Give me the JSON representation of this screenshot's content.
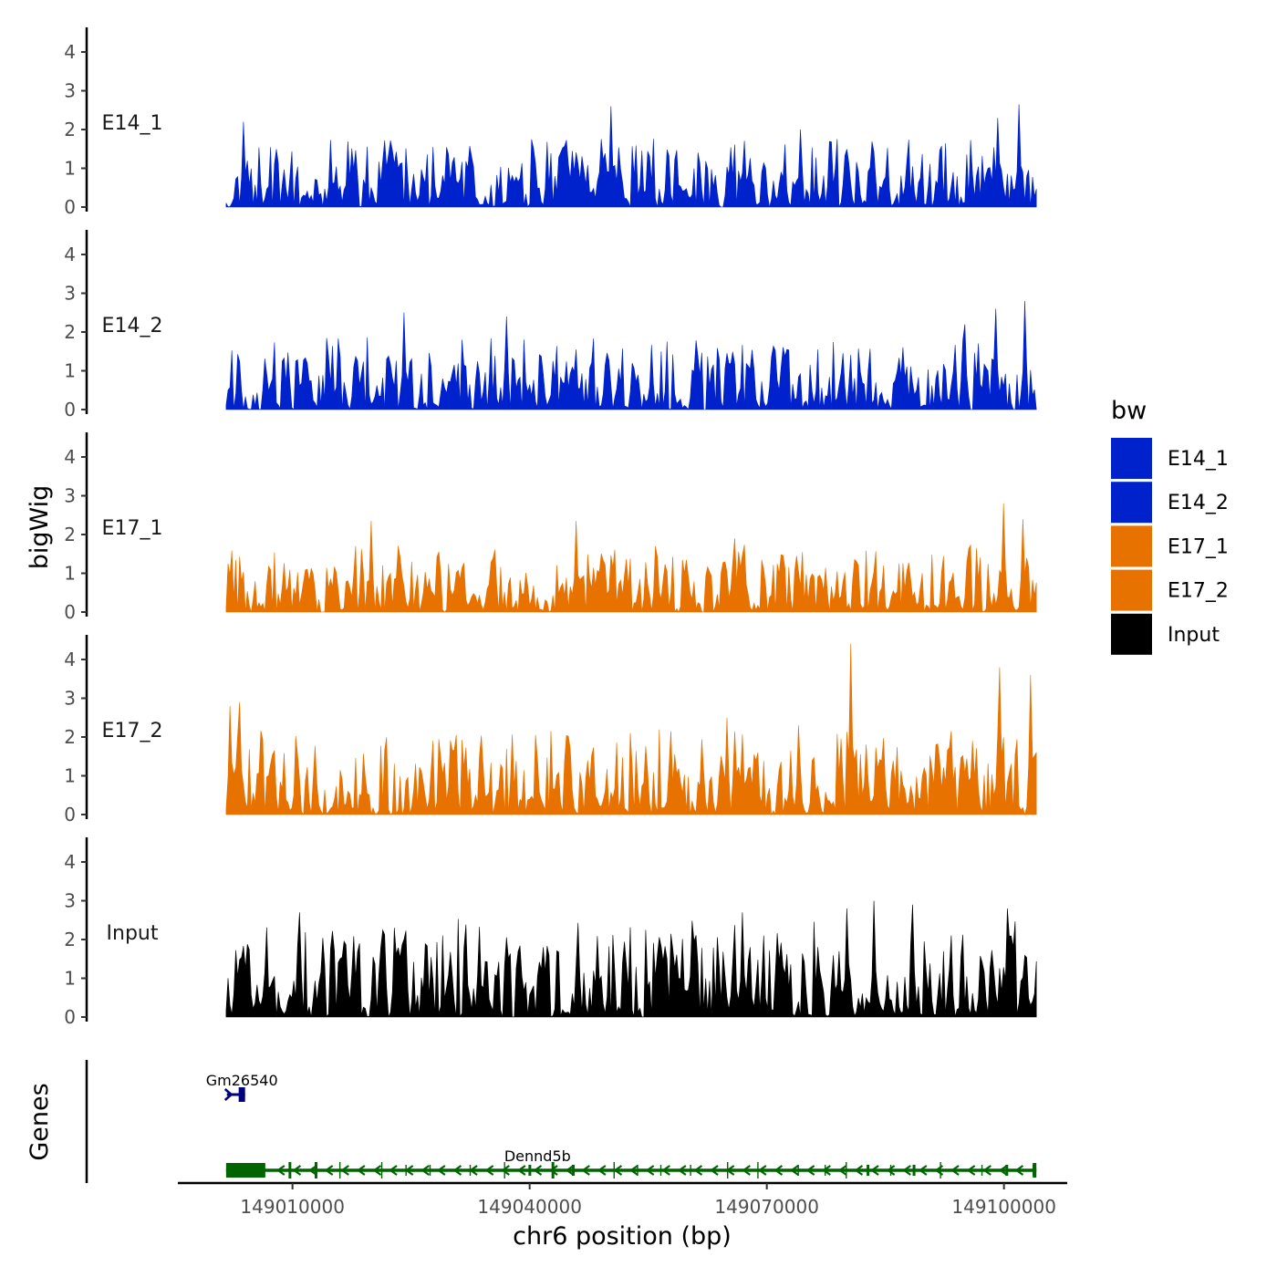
{
  "chart_data": {
    "type": "area",
    "title": "",
    "ylabel": "bigWig",
    "genes_label": "Genes",
    "xlabel": "chr6 position (bp)",
    "ylim": [
      0,
      4.5
    ],
    "y_ticks": [
      0,
      1,
      2,
      3,
      4
    ],
    "x_range": [
      148995500,
      149108000
    ],
    "x_data_range": [
      149001600,
      149104100
    ],
    "x_ticks": [
      149010000,
      149040000,
      149070000,
      149100000
    ],
    "x_tick_labels": [
      "149010000",
      "149040000",
      "149070000",
      "149100000"
    ],
    "legend": {
      "title": "bw",
      "position": "right",
      "entries": [
        {
          "name": "E14_1",
          "color": "#0022cc"
        },
        {
          "name": "E14_2",
          "color": "#0022cc"
        },
        {
          "name": "E17_1",
          "color": "#e87200"
        },
        {
          "name": "E17_2",
          "color": "#e87200"
        },
        {
          "name": "Input",
          "color": "#000000"
        }
      ]
    },
    "series": [
      {
        "name": "E14_1",
        "color": "#0022cc",
        "seed": 11,
        "base": 0.45,
        "typical_max": 1.6,
        "max": 2.7,
        "peaks": [
          [
            149003700,
            2.2
          ],
          [
            149050200,
            2.6
          ],
          [
            149074300,
            2.0
          ],
          [
            149101800,
            2.65
          ],
          [
            149099200,
            2.3
          ]
        ]
      },
      {
        "name": "E14_2",
        "color": "#0022cc",
        "seed": 23,
        "base": 0.55,
        "typical_max": 1.7,
        "max": 2.8,
        "peaks": [
          [
            149024100,
            2.5
          ],
          [
            149037000,
            2.4
          ],
          [
            149099000,
            2.6
          ],
          [
            149102600,
            2.8
          ],
          [
            149095100,
            2.2
          ]
        ]
      },
      {
        "name": "E17_1",
        "color": "#e87200",
        "seed": 37,
        "base": 0.55,
        "typical_max": 1.6,
        "max": 2.8,
        "peaks": [
          [
            149020000,
            2.35
          ],
          [
            149046000,
            2.35
          ],
          [
            149099900,
            2.8
          ],
          [
            149102500,
            2.4
          ],
          [
            149066000,
            1.9
          ]
        ]
      },
      {
        "name": "E17_2",
        "color": "#e87200",
        "seed": 41,
        "base": 0.7,
        "typical_max": 2.0,
        "max": 4.4,
        "peaks": [
          [
            149002000,
            2.8
          ],
          [
            149003200,
            2.9
          ],
          [
            149080500,
            4.4
          ],
          [
            149099500,
            3.8
          ],
          [
            149103400,
            3.6
          ],
          [
            149074000,
            2.3
          ],
          [
            149065000,
            2.5
          ]
        ]
      },
      {
        "name": "Input",
        "color": "#000000",
        "seed": 53,
        "base": 0.95,
        "typical_max": 2.3,
        "max": 3.0,
        "peaks": [
          [
            149011000,
            2.7
          ],
          [
            149083500,
            3.0
          ],
          [
            149088400,
            2.9
          ],
          [
            149080200,
            2.8
          ],
          [
            149100500,
            2.8
          ],
          [
            149067000,
            2.7
          ]
        ]
      }
    ],
    "genes": [
      {
        "name": "Gm26540",
        "color": "#000080",
        "start": 149001700,
        "end": 149004000,
        "strand": "+",
        "label_pos": 149003600
      },
      {
        "name": "Dennd5b",
        "color": "#006400",
        "start": 149001600,
        "end": 149104100,
        "strand": "-",
        "label_pos": 149041000
      }
    ]
  }
}
